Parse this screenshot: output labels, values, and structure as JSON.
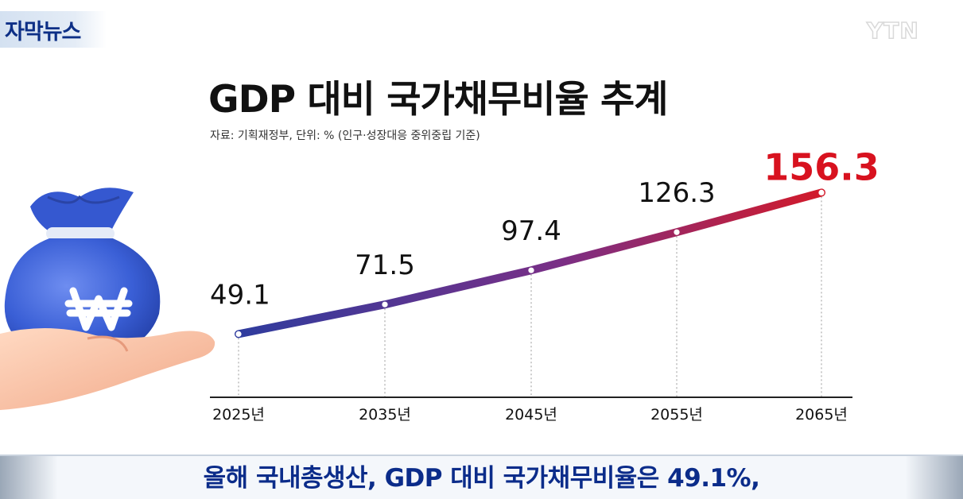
{
  "tag": "자막뉴스",
  "logo": "YTN",
  "caption": "올해 국내총생산, GDP 대비 국가채무비율은 49.1%,",
  "colors": {
    "line_start": "#2f3c9e",
    "line_end": "#d21a2a",
    "last_label": "#d8121f",
    "caption_text": "#0b2c8a"
  },
  "icons": {
    "bag": "money-bag-won-icon"
  },
  "chart_data": {
    "type": "line",
    "title": "GDP 대비 국가채무비율 추계",
    "subtitle": "자료: 기획재정부, 단위: % (인구·성장대응 중위중립 기준)",
    "categories": [
      "2025년",
      "2035년",
      "2045년",
      "2055년",
      "2065년"
    ],
    "values": [
      49.1,
      71.5,
      97.4,
      126.3,
      156.3
    ],
    "value_labels": [
      "49.1",
      "71.5",
      "97.4",
      "126.3",
      "156.3"
    ],
    "highlight_last": true,
    "ylim": [
      40,
      160
    ],
    "grid": false
  }
}
